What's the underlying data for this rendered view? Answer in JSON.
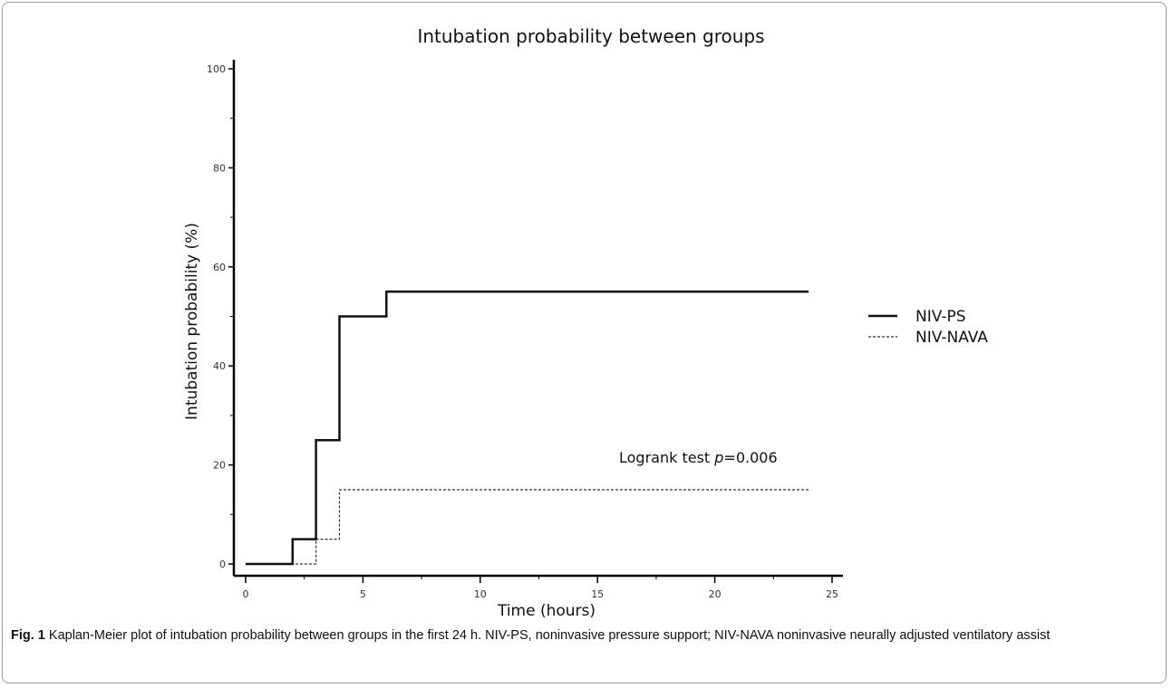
{
  "chart_data": {
    "type": "line",
    "step": true,
    "title": "Intubation probability between groups",
    "xlabel": "Time (hours)",
    "ylabel": "Intubation  probability (%)",
    "xlim": [
      0,
      25
    ],
    "ylim": [
      0,
      100
    ],
    "xticks": [
      0,
      5,
      10,
      15,
      20,
      25
    ],
    "yticks": [
      0,
      20,
      40,
      60,
      80,
      100
    ],
    "grid": false,
    "legend_position": "right",
    "series": [
      {
        "name": "NIV-PS",
        "style": "solid",
        "color": "#111111",
        "points": [
          [
            0,
            0
          ],
          [
            2,
            0
          ],
          [
            2,
            5
          ],
          [
            3,
            5
          ],
          [
            3,
            25
          ],
          [
            4,
            25
          ],
          [
            4,
            50
          ],
          [
            6,
            50
          ],
          [
            6,
            55
          ],
          [
            24,
            55
          ]
        ]
      },
      {
        "name": "NIV-NAVA",
        "style": "dashed",
        "color": "#333333",
        "points": [
          [
            0,
            0
          ],
          [
            3,
            0
          ],
          [
            3,
            5
          ],
          [
            4,
            5
          ],
          [
            4,
            15
          ],
          [
            24,
            15
          ]
        ]
      }
    ],
    "annotations": [
      {
        "text_prefix": "Logrank test ",
        "italic": "p",
        "text_suffix": "=0.006",
        "x": 15,
        "y": 23
      }
    ]
  },
  "caption": {
    "label": "Fig. 1",
    "text": " Kaplan-Meier plot of intubation probability between groups in the first 24 h. NIV-PS, noninvasive pressure support; NIV-NAVA noninvasive neurally adjusted ventilatory assist"
  }
}
